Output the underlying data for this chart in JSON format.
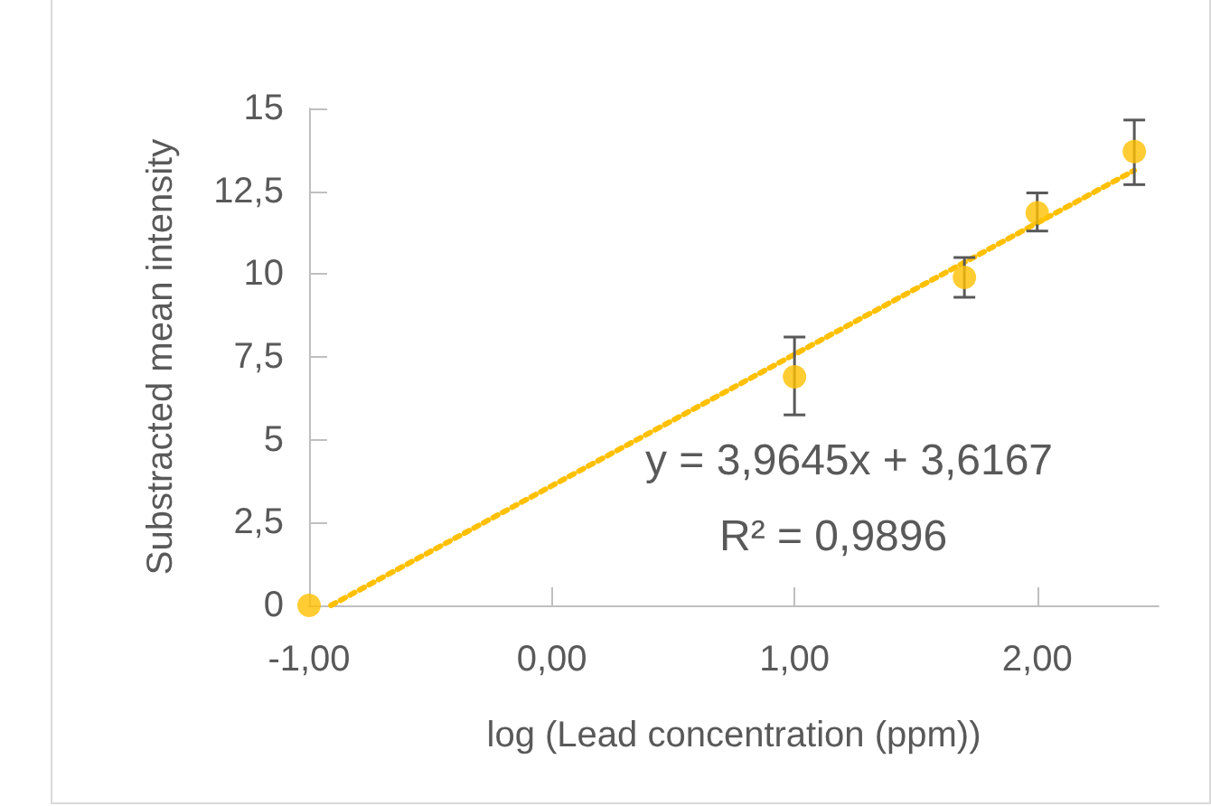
{
  "chart_data": {
    "type": "scatter",
    "xlabel": "log (Lead concentration (ppm))",
    "ylabel": "Substracted mean intensity",
    "annotations": [
      "y = 3,9645x + 3,6167",
      "R² = 0,9896"
    ],
    "series": [
      {
        "color": "#ffc000",
        "x": [
          -1,
          1,
          1.7,
          2,
          2.4
        ],
        "values": [
          0,
          6.9,
          9.9,
          11.85,
          13.7
        ],
        "errors": [
          null,
          [
            5.75,
            8.1
          ],
          [
            9.3,
            10.5
          ],
          [
            11.3,
            12.45
          ],
          [
            12.7,
            14.65
          ]
        ]
      },
      {
        "type": "line",
        "color": "#ffc000",
        "line_style": "dotted",
        "marker": "none",
        "x": [
          -0.91,
          2.4
        ],
        "values": [
          0,
          13.13
        ]
      }
    ],
    "xlim": [
      -1,
      2.5
    ],
    "xticks": [
      {
        "value": -1,
        "label": "-1,00"
      },
      {
        "value": 0,
        "label": "0,00"
      },
      {
        "value": 1,
        "label": "1,00"
      },
      {
        "value": 2,
        "label": "2,00"
      }
    ],
    "ylim": [
      0,
      15
    ],
    "yticks": [
      0,
      {
        "value": 2.5,
        "label": "2,5"
      },
      5,
      {
        "value": 7.5,
        "label": "7,5"
      },
      10,
      {
        "value": 12.5,
        "label": "12,5"
      },
      15
    ],
    "grid": false,
    "marker": "circle"
  }
}
